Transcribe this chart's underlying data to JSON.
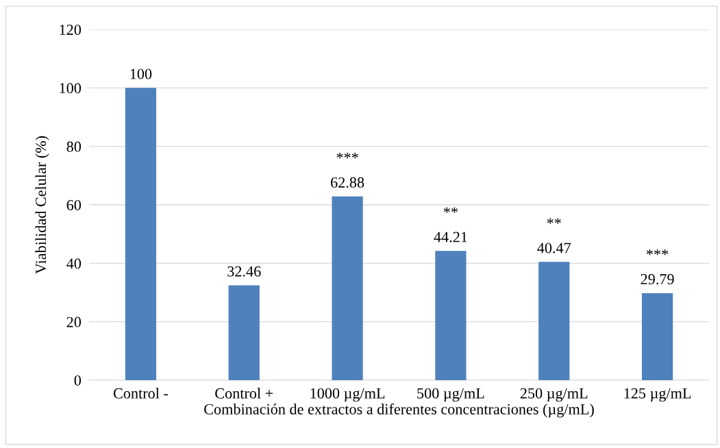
{
  "chart_data": {
    "type": "bar",
    "xlabel": "Combinación de extractos a diferentes concentraciones (µg/mL)",
    "ylabel": "Viabilidad Celular (%)",
    "categories": [
      "Control -",
      "Control +",
      "1000 µg/mL",
      "500 µg/mL",
      "250 µg/mL",
      "125 µg/mL"
    ],
    "values": [
      100,
      32.46,
      62.88,
      44.21,
      40.47,
      29.79
    ],
    "color": "#4f81bd",
    "ylim": [
      0,
      120
    ],
    "yticks": [
      0,
      20,
      40,
      60,
      80,
      100,
      120
    ],
    "grid": "y",
    "data_labels": true,
    "legend": false,
    "annotations": [
      {
        "text": "***",
        "x": "1000 µg/mL",
        "y": 62.88
      },
      {
        "text": "**",
        "x": "500 µg/mL",
        "y": 44.21
      },
      {
        "text": "**",
        "x": "250 µg/mL",
        "y": 40.47
      },
      {
        "text": "***",
        "x": "125 µg/mL",
        "y": 29.79
      }
    ]
  }
}
